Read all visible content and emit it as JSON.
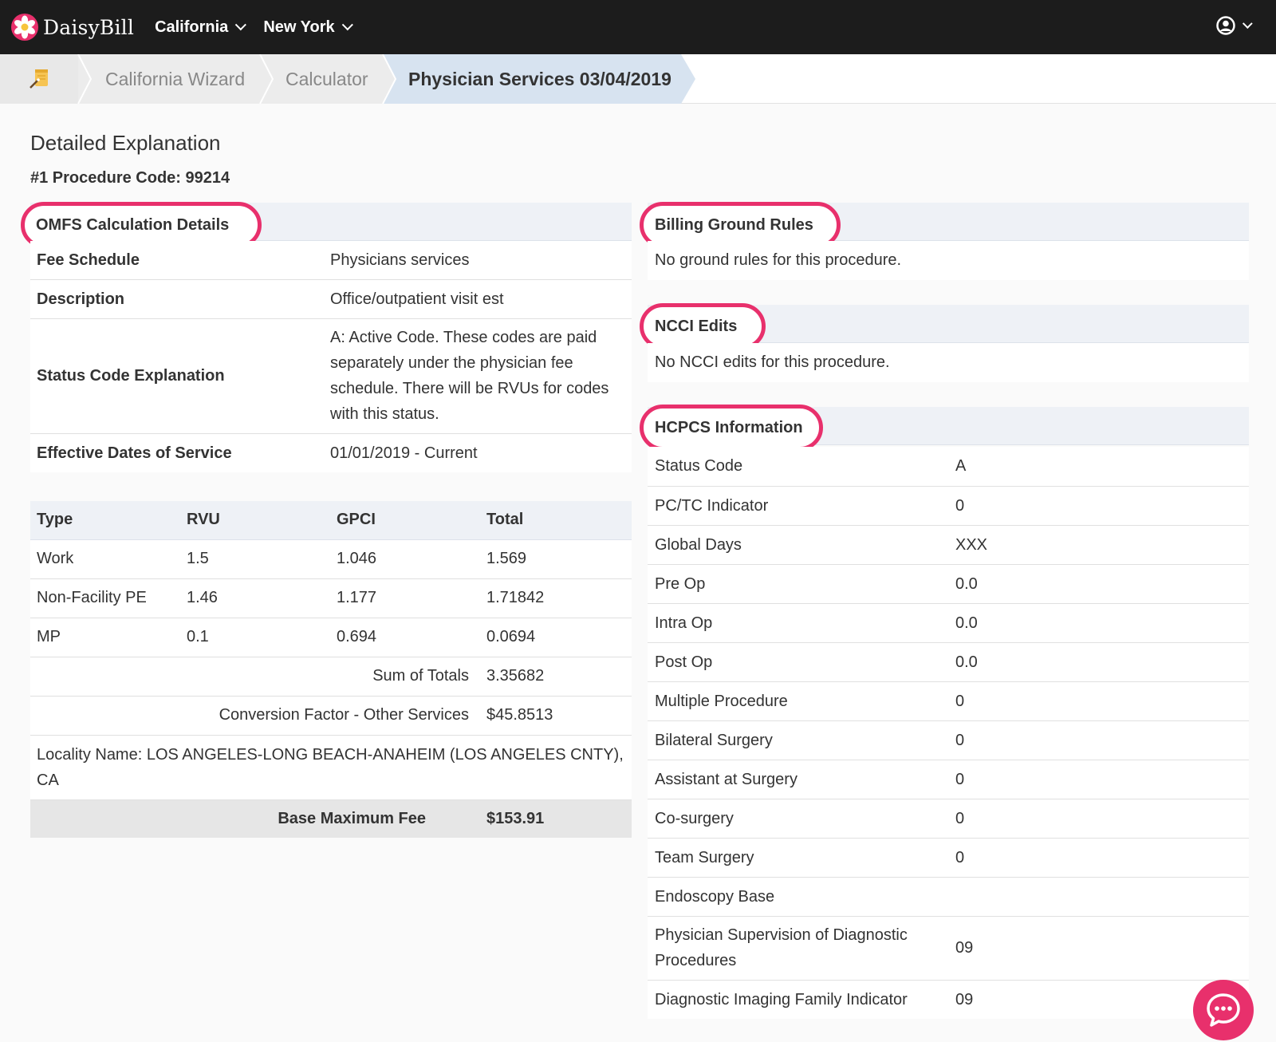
{
  "brand": {
    "name": "DaisyBill",
    "accent": "#e8306c"
  },
  "nav": {
    "items": [
      {
        "label": "California"
      },
      {
        "label": "New York"
      }
    ],
    "user_icon": "user-circle-icon"
  },
  "breadcrumb": {
    "home_icon": "notepad-wand-icon",
    "items": [
      "California Wizard",
      "Calculator",
      "Physician Services 03/04/2019"
    ]
  },
  "page": {
    "title": "Detailed Explanation",
    "procedure_code": "#1 Procedure Code: 99214"
  },
  "omfs": {
    "heading": "OMFS Calculation Details",
    "rows": [
      {
        "key": "Fee Schedule",
        "value": "Physicians services"
      },
      {
        "key": "Description",
        "value": "Office/outpatient visit est"
      },
      {
        "key": "Status Code Explanation",
        "value": "A: Active Code. These codes are paid separately under the physician fee schedule. There will be RVUs for codes with this status."
      },
      {
        "key": "Effective Dates of Service",
        "value": "01/01/2019 - Current"
      }
    ],
    "rvu_table": {
      "headers": [
        "Type",
        "RVU",
        "GPCI",
        "Total"
      ],
      "rows": [
        [
          "Work",
          "1.5",
          "1.046",
          "1.569"
        ],
        [
          "Non-Facility PE",
          "1.46",
          "1.177",
          "1.71842"
        ],
        [
          "MP",
          "0.1",
          "0.694",
          "0.0694"
        ]
      ],
      "sum_label": "Sum of Totals",
      "sum_value": "3.35682",
      "cf_label": "Conversion Factor - Other Services",
      "cf_value": "$45.8513",
      "locality": "Locality Name: LOS ANGELES-LONG BEACH-ANAHEIM (LOS ANGELES CNTY), CA",
      "base_label": "Base Maximum Fee",
      "base_value": "$153.91"
    }
  },
  "billing_rules": {
    "heading": "Billing Ground Rules",
    "text": "No ground rules for this procedure."
  },
  "ncci": {
    "heading": "NCCI Edits",
    "text": "No NCCI edits for this procedure."
  },
  "hcpcs": {
    "heading": "HCPCS Information",
    "rows": [
      {
        "key": "Status Code",
        "value": "A"
      },
      {
        "key": "PC/TC Indicator",
        "value": "0"
      },
      {
        "key": "Global Days",
        "value": "XXX"
      },
      {
        "key": "Pre Op",
        "value": "0.0"
      },
      {
        "key": "Intra Op",
        "value": "0.0"
      },
      {
        "key": "Post Op",
        "value": "0.0"
      },
      {
        "key": "Multiple Procedure",
        "value": "0"
      },
      {
        "key": "Bilateral Surgery",
        "value": "0"
      },
      {
        "key": "Assistant at Surgery",
        "value": "0"
      },
      {
        "key": "Co-surgery",
        "value": "0"
      },
      {
        "key": "Team Surgery",
        "value": "0"
      },
      {
        "key": "Endoscopy Base",
        "value": ""
      },
      {
        "key": "Physician Supervision of Diagnostic Procedures",
        "value": "09"
      },
      {
        "key": "Diagnostic Imaging Family Indicator",
        "value": "09"
      }
    ]
  },
  "chat": {
    "icon": "chat-bubble-icon"
  }
}
